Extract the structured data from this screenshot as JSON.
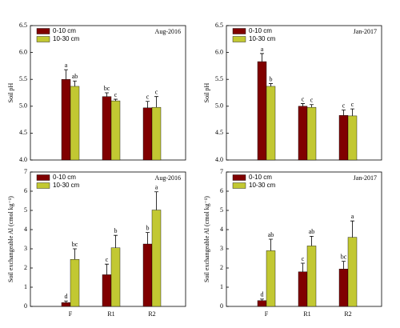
{
  "chart_data": [
    {
      "type": "bar",
      "ylabel": "Soil pH",
      "annotation": "Aug-2016",
      "categories": [
        null,
        null,
        null
      ],
      "series": [
        {
          "name": "0-10 cm",
          "color": "#800000",
          "values": [
            5.5,
            5.18,
            4.97
          ],
          "errors": [
            0.18,
            0.07,
            0.12
          ],
          "letters": [
            "a",
            "bc",
            "c"
          ]
        },
        {
          "name": "10-30 cm",
          "color": "#c2c832",
          "values": [
            5.37,
            5.1,
            4.98
          ],
          "errors": [
            0.1,
            0.03,
            0.2
          ],
          "letters": [
            "ab",
            "c",
            "c"
          ]
        }
      ],
      "ylim": [
        4,
        6.5
      ],
      "yticks": [
        {
          "value": 4,
          "label": "4.0"
        },
        4.5,
        {
          "value": 5,
          "label": "5.0"
        },
        5.5,
        {
          "value": 6,
          "label": "6.0"
        },
        6.5
      ],
      "legend": "upper left"
    },
    {
      "type": "bar",
      "ylabel": "Soil pH",
      "annotation": "Jan-2017",
      "categories": [
        null,
        null,
        null
      ],
      "series": [
        {
          "name": "0-10 cm",
          "color": "#800000",
          "values": [
            5.83,
            5.0,
            4.83
          ],
          "errors": [
            0.15,
            0.05,
            0.1
          ],
          "letters": [
            "a",
            "c",
            "c"
          ]
        },
        {
          "name": "10-30 cm",
          "color": "#c2c832",
          "values": [
            5.37,
            4.98,
            4.82
          ],
          "errors": [
            0.05,
            0.05,
            0.13
          ],
          "letters": [
            "b",
            "c",
            "c"
          ]
        }
      ],
      "ylim": [
        4,
        6.5
      ],
      "yticks": [
        {
          "value": 4,
          "label": "4.0"
        },
        4.5,
        {
          "value": 5,
          "label": "5.0"
        },
        5.5,
        {
          "value": 6,
          "label": "6.0"
        },
        6.5
      ],
      "legend": "upper left"
    },
    {
      "type": "bar",
      "ylabel": "Soil exchangeable Al (cmol kg⁻¹)",
      "annotation": "Aug-2016",
      "categories": [
        "F",
        "R1",
        "R2"
      ],
      "series": [
        {
          "name": "0-10 cm",
          "color": "#800000",
          "values": [
            0.2,
            1.65,
            3.25
          ],
          "errors": [
            0.08,
            0.55,
            0.6
          ],
          "letters": [
            "d",
            "c",
            "b"
          ]
        },
        {
          "name": "10-30 cm",
          "color": "#c2c832",
          "values": [
            2.45,
            3.05,
            5.02
          ],
          "errors": [
            0.55,
            0.65,
            0.95
          ],
          "letters": [
            "bc",
            "b",
            "a"
          ]
        }
      ],
      "ylim": [
        0,
        7
      ],
      "yticks": [
        0,
        1,
        2,
        3,
        4,
        5,
        6,
        7
      ],
      "legend": "upper left"
    },
    {
      "type": "bar",
      "ylabel": "Soil exchangeable Al (cmol kg⁻¹)",
      "annotation": "Jan-2017",
      "categories": [
        "F",
        "R1",
        "R2"
      ],
      "series": [
        {
          "name": "0-10 cm",
          "color": "#800000",
          "values": [
            0.3,
            1.8,
            1.95
          ],
          "errors": [
            0.08,
            0.45,
            0.4
          ],
          "letters": [
            "d",
            "c",
            "bc"
          ]
        },
        {
          "name": "10-30 cm",
          "color": "#c2c832",
          "values": [
            2.9,
            3.15,
            3.6
          ],
          "errors": [
            0.6,
            0.5,
            0.85
          ],
          "letters": [
            "ab",
            "ab",
            "a"
          ]
        }
      ],
      "ylim": [
        0,
        7
      ],
      "yticks": [
        0,
        1,
        2,
        3,
        4,
        5,
        6,
        7
      ],
      "legend": "upper left"
    }
  ]
}
